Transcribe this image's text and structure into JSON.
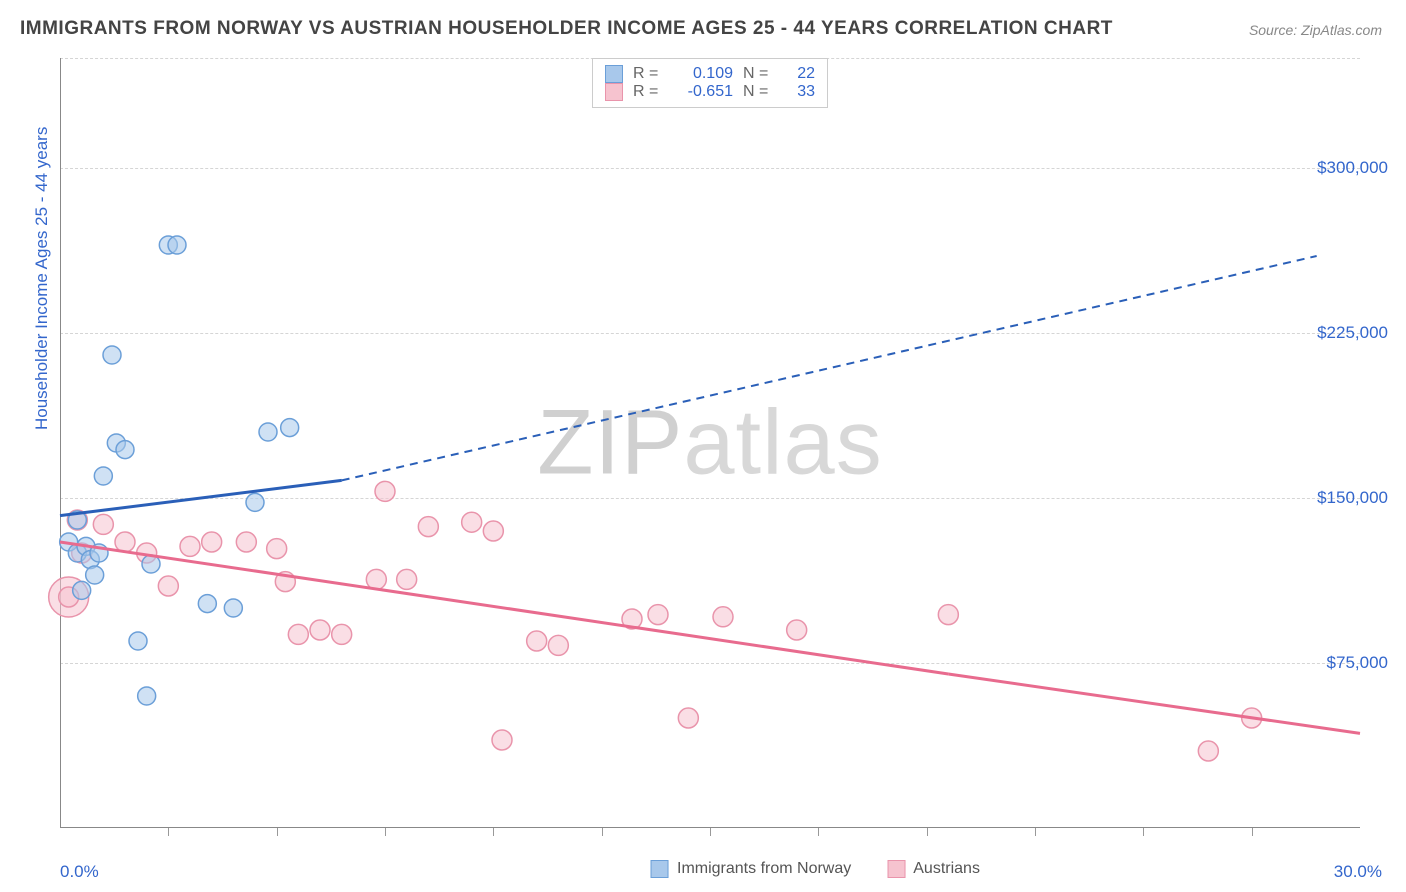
{
  "title": "IMMIGRANTS FROM NORWAY VS AUSTRIAN HOUSEHOLDER INCOME AGES 25 - 44 YEARS CORRELATION CHART",
  "source": "Source: ZipAtlas.com",
  "watermark_zip": "ZIP",
  "watermark_atlas": "atlas",
  "ylabel": "Householder Income Ages 25 - 44 years",
  "xmin_label": "0.0%",
  "xmax_label": "30.0%",
  "legend_series_a": "Immigrants from Norway",
  "legend_series_b": "Austrians",
  "stat_r_label": "R  =",
  "stat_n_label": "N  =",
  "series_a_r": "0.109",
  "series_a_n": "22",
  "series_b_r": "-0.651",
  "series_b_n": "33",
  "chart": {
    "type": "scatter",
    "xlim": [
      0,
      30
    ],
    "ylim": [
      0,
      350000
    ],
    "xticks": [
      2.5,
      5,
      7.5,
      10,
      12.5,
      15,
      17.5,
      20,
      22.5,
      25,
      27.5
    ],
    "yticks": [
      75000,
      150000,
      225000,
      300000
    ],
    "ytick_labels": [
      "$75,000",
      "$150,000",
      "$225,000",
      "$300,000"
    ],
    "grid_color": "#d5d5d5",
    "background_color": "#ffffff",
    "series_a": {
      "color_fill": "#a8c8eb",
      "color_stroke": "#6b9fd8",
      "line_color": "#2a5fb8",
      "marker_r": 9,
      "points": [
        [
          0.2,
          130000
        ],
        [
          0.4,
          125000
        ],
        [
          0.5,
          108000
        ],
        [
          0.6,
          128000
        ],
        [
          0.7,
          122000
        ],
        [
          0.8,
          115000
        ],
        [
          0.9,
          125000
        ],
        [
          1.0,
          160000
        ],
        [
          1.2,
          215000
        ],
        [
          1.3,
          175000
        ],
        [
          1.5,
          172000
        ],
        [
          1.8,
          85000
        ],
        [
          2.0,
          60000
        ],
        [
          2.1,
          120000
        ],
        [
          2.5,
          265000
        ],
        [
          2.7,
          265000
        ],
        [
          3.4,
          102000
        ],
        [
          4.0,
          100000
        ],
        [
          4.5,
          148000
        ],
        [
          4.8,
          180000
        ],
        [
          5.3,
          182000
        ],
        [
          0.4,
          140000
        ]
      ],
      "trend_solid": {
        "x1": 0,
        "y1": 142000,
        "x2": 6.5,
        "y2": 158000
      },
      "trend_dash": {
        "x1": 6.5,
        "y1": 158000,
        "x2": 29,
        "y2": 260000
      }
    },
    "series_b": {
      "color_fill": "#f6c3cf",
      "color_stroke": "#e994ab",
      "line_color": "#e86b8e",
      "marker_r": 10,
      "points": [
        [
          0.2,
          105000
        ],
        [
          0.4,
          140000
        ],
        [
          0.5,
          125000
        ],
        [
          1.0,
          138000
        ],
        [
          1.5,
          130000
        ],
        [
          2.0,
          125000
        ],
        [
          2.5,
          110000
        ],
        [
          3.0,
          128000
        ],
        [
          3.5,
          130000
        ],
        [
          4.3,
          130000
        ],
        [
          5.0,
          127000
        ],
        [
          5.2,
          112000
        ],
        [
          5.5,
          88000
        ],
        [
          6.0,
          90000
        ],
        [
          6.5,
          88000
        ],
        [
          7.3,
          113000
        ],
        [
          7.5,
          153000
        ],
        [
          8.0,
          113000
        ],
        [
          8.5,
          137000
        ],
        [
          9.5,
          139000
        ],
        [
          10.0,
          135000
        ],
        [
          10.2,
          40000
        ],
        [
          11.0,
          85000
        ],
        [
          11.5,
          83000
        ],
        [
          13.2,
          95000
        ],
        [
          13.8,
          97000
        ],
        [
          14.5,
          50000
        ],
        [
          15.3,
          96000
        ],
        [
          17,
          90000
        ],
        [
          20.5,
          97000
        ],
        [
          26.5,
          35000
        ],
        [
          27.5,
          50000
        ]
      ],
      "points_large": [
        [
          0.2,
          105000
        ]
      ],
      "trend_solid": {
        "x1": 0,
        "y1": 130000,
        "x2": 20.5,
        "y2": 70000
      },
      "trend_dash": {
        "x1": 20.5,
        "y1": 70000,
        "x2": 30,
        "y2": 43000
      }
    }
  }
}
